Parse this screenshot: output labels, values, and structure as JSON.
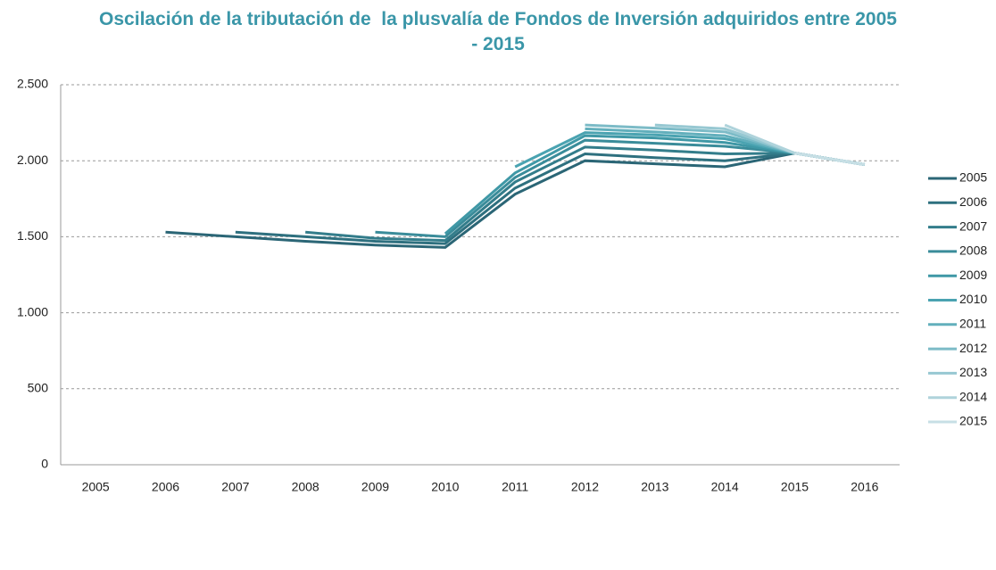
{
  "chart_data": {
    "type": "line",
    "title": "Oscilación de la tributación de  la plusvalía de Fondos de Inversión adquiridos entre 2005   - 2015",
    "categories": [
      "2005",
      "2006",
      "2007",
      "2008",
      "2009",
      "2010",
      "2011",
      "2012",
      "2013",
      "2014",
      "2015",
      "2016"
    ],
    "series": [
      {
        "name": "2005",
        "color": "#2b6676",
        "values": [
          null,
          1530,
          1500,
          1470,
          1445,
          1430,
          1780,
          2000,
          1980,
          1960,
          2050,
          1975
        ]
      },
      {
        "name": "2006",
        "color": "#2e707f",
        "values": [
          null,
          null,
          1530,
          1500,
          1470,
          1455,
          1820,
          2045,
          2020,
          2000,
          2050,
          1975
        ]
      },
      {
        "name": "2007",
        "color": "#337d8b",
        "values": [
          null,
          null,
          null,
          1530,
          1490,
          1475,
          1860,
          2090,
          2070,
          2045,
          2050,
          1975
        ]
      },
      {
        "name": "2008",
        "color": "#3a8c9a",
        "values": [
          null,
          null,
          null,
          null,
          1530,
          1500,
          1890,
          2135,
          2115,
          2095,
          2050,
          1975
        ]
      },
      {
        "name": "2009",
        "color": "#3f98a6",
        "values": [
          null,
          null,
          null,
          null,
          null,
          1520,
          1920,
          2165,
          2150,
          2120,
          2050,
          1975
        ]
      },
      {
        "name": "2010",
        "color": "#4aa3b1",
        "values": [
          null,
          null,
          null,
          null,
          null,
          null,
          1960,
          2185,
          2170,
          2145,
          2050,
          1975
        ]
      },
      {
        "name": "2011",
        "color": "#62afbc",
        "values": [
          null,
          null,
          null,
          null,
          null,
          null,
          null,
          2210,
          2190,
          2165,
          2050,
          1975
        ]
      },
      {
        "name": "2012",
        "color": "#7cbbc7",
        "values": [
          null,
          null,
          null,
          null,
          null,
          null,
          null,
          2235,
          2215,
          2190,
          2050,
          1975
        ]
      },
      {
        "name": "2013",
        "color": "#97c8d2",
        "values": [
          null,
          null,
          null,
          null,
          null,
          null,
          null,
          null,
          2235,
          2210,
          2050,
          1975
        ]
      },
      {
        "name": "2014",
        "color": "#afd3db",
        "values": [
          null,
          null,
          null,
          null,
          null,
          null,
          null,
          null,
          null,
          2235,
          2050,
          1975
        ]
      },
      {
        "name": "2015",
        "color": "#c7dfe5",
        "values": [
          null,
          null,
          null,
          null,
          null,
          null,
          null,
          null,
          null,
          null,
          2050,
          1975
        ]
      }
    ],
    "ylim": [
      0,
      2500
    ],
    "yticks": [
      0,
      500,
      {
        "value": 1000,
        "label": "1.000"
      },
      {
        "value": 1500,
        "label": "1.500"
      },
      {
        "value": 2000,
        "label": "2.000"
      },
      {
        "value": 2500,
        "label": "2.500"
      }
    ],
    "grid": true,
    "legend": "right"
  }
}
